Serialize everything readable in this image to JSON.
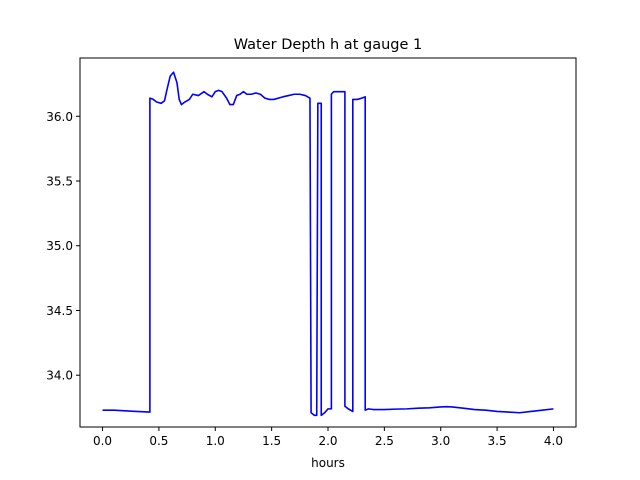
{
  "chart_data": {
    "type": "line",
    "title": "Water Depth h at gauge 1",
    "xlabel": "hours",
    "ylabel": "",
    "xlim": [
      -0.2,
      4.2
    ],
    "ylim": [
      33.6,
      36.45
    ],
    "xticks": [
      0.0,
      0.5,
      1.0,
      1.5,
      2.0,
      2.5,
      3.0,
      3.5,
      4.0
    ],
    "xtick_labels": [
      "0.0",
      "0.5",
      "1.0",
      "1.5",
      "2.0",
      "2.5",
      "3.0",
      "3.5",
      "4.0"
    ],
    "yticks": [
      34.0,
      34.5,
      35.0,
      35.5,
      36.0
    ],
    "ytick_labels": [
      "34.0",
      "34.5",
      "35.0",
      "35.5",
      "36.0"
    ],
    "grid": false,
    "legend": "none",
    "series": [
      {
        "color": "#0000ff",
        "x": [
          0.0,
          0.1,
          0.2,
          0.3,
          0.42,
          0.42,
          0.45,
          0.48,
          0.52,
          0.55,
          0.57,
          0.6,
          0.63,
          0.66,
          0.68,
          0.7,
          0.73,
          0.77,
          0.8,
          0.85,
          0.9,
          0.93,
          0.97,
          1.0,
          1.03,
          1.06,
          1.1,
          1.13,
          1.16,
          1.19,
          1.22,
          1.25,
          1.28,
          1.32,
          1.36,
          1.4,
          1.44,
          1.48,
          1.52,
          1.56,
          1.6,
          1.65,
          1.7,
          1.75,
          1.8,
          1.84,
          1.85,
          1.88,
          1.9,
          1.91,
          1.94,
          1.94,
          1.97,
          2.0,
          2.03,
          2.03,
          2.05,
          2.08,
          2.12,
          2.15,
          2.15,
          2.18,
          2.22,
          2.22,
          2.26,
          2.3,
          2.33,
          2.33,
          2.36,
          2.4,
          2.5,
          2.6,
          2.7,
          2.8,
          2.9,
          3.0,
          3.05,
          3.1,
          3.2,
          3.3,
          3.4,
          3.5,
          3.6,
          3.7,
          3.8,
          3.9,
          4.0
        ],
        "y": [
          33.73,
          33.73,
          33.725,
          33.72,
          33.715,
          36.14,
          36.13,
          36.11,
          36.1,
          36.12,
          36.2,
          36.31,
          36.34,
          36.26,
          36.13,
          36.09,
          36.11,
          36.13,
          36.17,
          36.16,
          36.19,
          36.17,
          36.15,
          36.19,
          36.2,
          36.19,
          36.14,
          36.09,
          36.09,
          36.16,
          36.17,
          36.19,
          36.17,
          36.17,
          36.18,
          36.17,
          36.14,
          36.13,
          36.13,
          36.14,
          36.15,
          36.16,
          36.17,
          36.17,
          36.16,
          36.14,
          33.71,
          33.69,
          33.69,
          36.1,
          36.1,
          33.69,
          33.71,
          33.74,
          33.74,
          36.17,
          36.19,
          36.19,
          36.19,
          36.19,
          33.76,
          33.74,
          33.72,
          36.13,
          36.13,
          36.14,
          36.15,
          33.73,
          33.74,
          33.735,
          33.735,
          33.738,
          33.74,
          33.745,
          33.748,
          33.755,
          33.757,
          33.755,
          33.745,
          33.735,
          33.73,
          33.72,
          33.715,
          33.71,
          33.72,
          33.73,
          33.74
        ]
      }
    ]
  }
}
